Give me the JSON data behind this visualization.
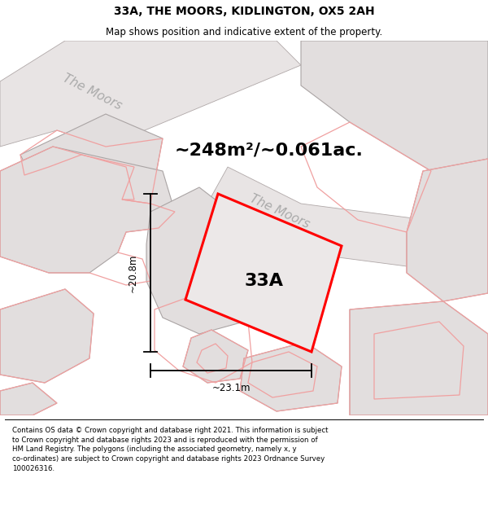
{
  "title": "33A, THE MOORS, KIDLINGTON, OX5 2AH",
  "subtitle": "Map shows position and indicative extent of the property.",
  "area_text": "~248m²/~0.061ac.",
  "label_33a": "33A",
  "dim_width": "~23.1m",
  "dim_height": "~20.8m",
  "street_name_1": "The Moors",
  "street_name_2": "The Moors",
  "footer_wrapped": "Contains OS data © Crown copyright and database right 2021. This information is subject\nto Crown copyright and database rights 2023 and is reproduced with the permission of\nHM Land Registry. The polygons (including the associated geometry, namely x, y\nco-ordinates) are subject to Crown copyright and database rights 2023 Ordnance Survey\n100026316.",
  "bg_white": "#ffffff",
  "map_bg": "#faf8f8",
  "road_fill": "#e8e4e4",
  "road_edge": "#b0a8a8",
  "bld_fill": "#e2dede",
  "bld_edge": "#aaa4a4",
  "pink_edge": "#f0a0a0",
  "highlight_color": "#ff0000",
  "title_fontsize": 10,
  "subtitle_fontsize": 8.5,
  "area_fontsize": 16,
  "label_fontsize": 16,
  "street_fontsize": 11,
  "footer_fontsize": 6.2,
  "dim_fontsize": 8.5
}
